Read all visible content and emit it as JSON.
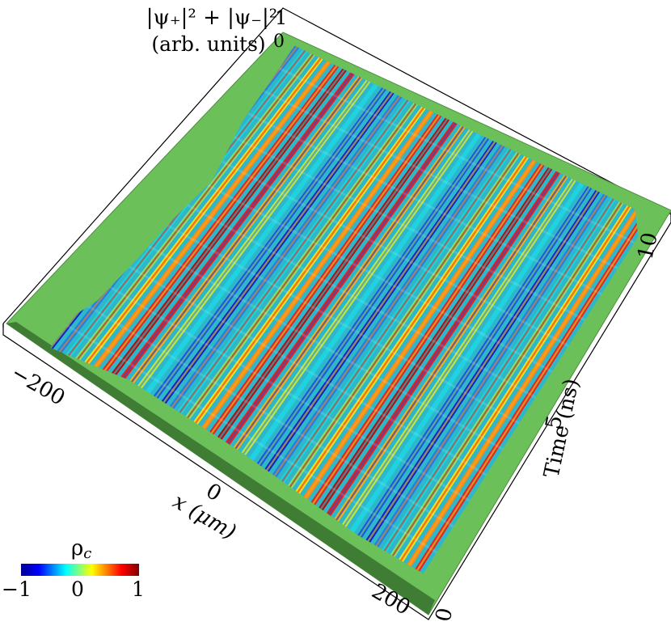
{
  "chart_data": {
    "type": "surface3d",
    "z_axis": {
      "label_line1": "|ψ₊|² + |ψ₋|²",
      "label_line2": "(arb. units)",
      "ticks": [
        "1",
        "0"
      ],
      "range": [
        0,
        1
      ]
    },
    "x_axis": {
      "label": "x (μm)",
      "ticks": [
        "−200",
        "0",
        "200"
      ],
      "range": [
        -200,
        200
      ]
    },
    "y_axis": {
      "label": "Time (ns)",
      "ticks": [
        "10",
        "5",
        "0"
      ],
      "range": [
        0,
        10
      ]
    },
    "colorbar": {
      "label": "ρ",
      "label_sub": "c",
      "ticks": [
        "−1",
        "0",
        "1"
      ],
      "range": [
        -1,
        1
      ],
      "colormap": [
        "#00008f",
        "#0000ff",
        "#00ffff",
        "#ffff00",
        "#ff0000",
        "#800000"
      ]
    },
    "floor_color": "#6cc05a",
    "grid": false
  }
}
